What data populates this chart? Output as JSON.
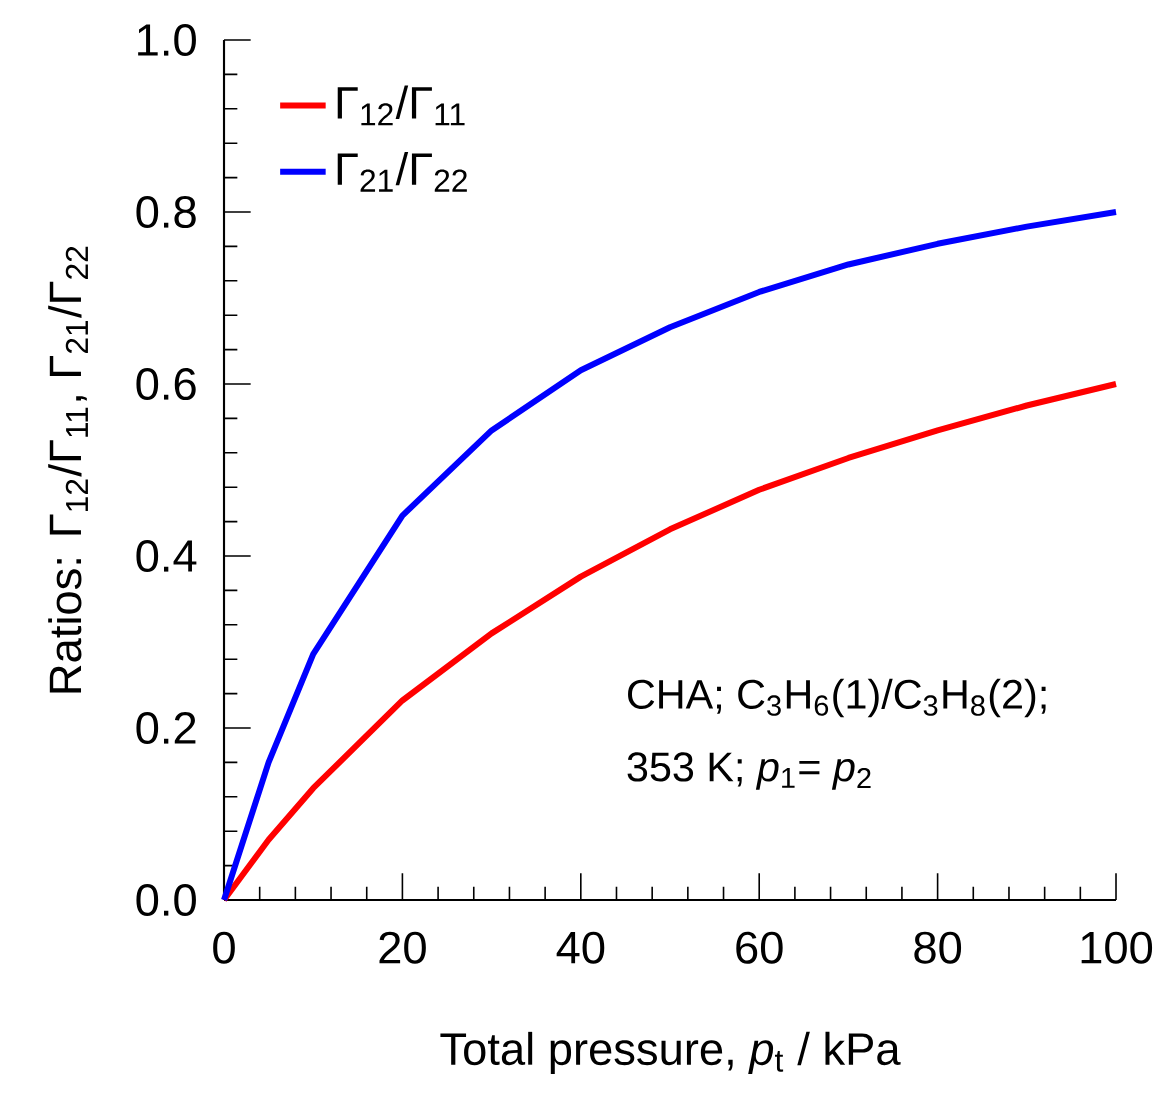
{
  "chart_data": {
    "type": "line",
    "xlabel": "Total pressure, *p*$_{t}$ / kPa",
    "ylabel": "Ratios: Γ$_{12}$/Γ$_{11}$, Γ$_{21}$/Γ$_{22}$",
    "x": [
      0,
      5,
      10,
      20,
      30,
      40,
      50,
      60,
      70,
      80,
      90,
      100
    ],
    "series": [
      {
        "name": "Γ$_{12}$/Γ$_{11}$",
        "color": "#ff0000",
        "values": [
          0,
          0.07,
          0.13,
          0.232,
          0.31,
          0.376,
          0.431,
          0.477,
          0.514,
          0.546,
          0.575,
          0.6
        ]
      },
      {
        "name": "Γ$_{21}$/Γ$_{22}$",
        "color": "#0000ff",
        "values": [
          0,
          0.16,
          0.286,
          0.447,
          0.546,
          0.616,
          0.666,
          0.707,
          0.739,
          0.763,
          0.783,
          0.8
        ]
      }
    ],
    "xlim": [
      0,
      100
    ],
    "xticks": [
      0,
      20,
      40,
      60,
      80,
      100
    ],
    "ylim": [
      0,
      1
    ],
    "yticks": [
      {
        "value": 0,
        "label": "0.0"
      },
      {
        "value": 0.2,
        "label": "0.2"
      },
      {
        "value": 0.4,
        "label": "0.4"
      },
      {
        "value": 0.6,
        "label": "0.6"
      },
      {
        "value": 0.8,
        "label": "0.8"
      },
      {
        "value": 1,
        "label": "1.0"
      }
    ],
    "annotations": [
      "CHA; C$_{3}$H$_{6}$(1)/C$_{3}$H$_{8}$(2);",
      "353 K; *p*$_{1}$= *p*$_{2}$"
    ],
    "legend": "top left",
    "grid": false,
    "marker": "none",
    "line_style": "solid"
  }
}
